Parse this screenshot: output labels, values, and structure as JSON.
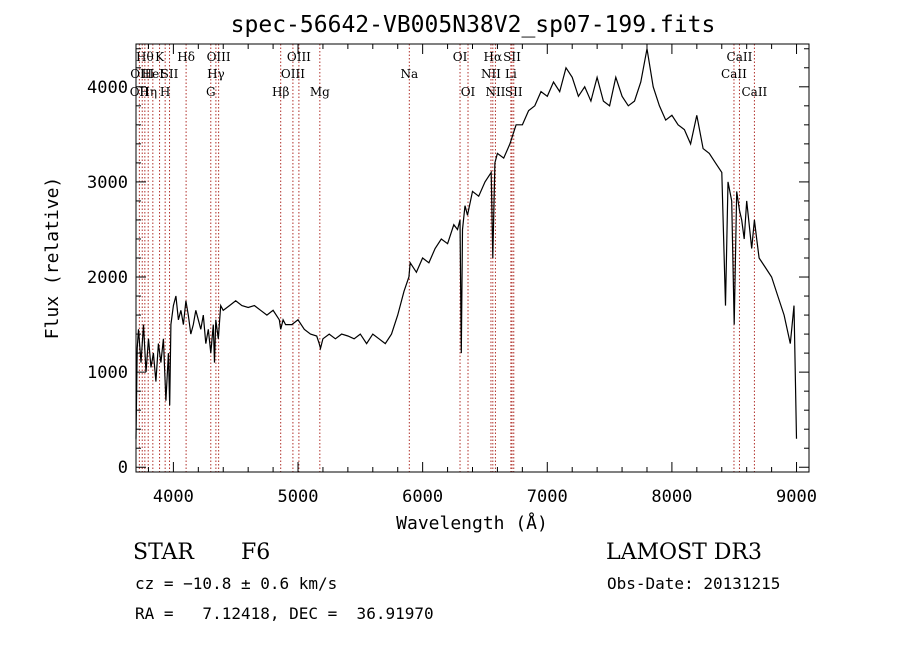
{
  "chart_data": {
    "type": "line",
    "title": "spec-56642-VB005N38V2_sp07-199.fits",
    "xlabel": "Wavelength (Å)",
    "ylabel": "Flux (relative)",
    "xlim": [
      3700,
      9100
    ],
    "ylim": [
      -50,
      4450
    ],
    "xticks": [
      4000,
      5000,
      6000,
      7000,
      8000,
      9000
    ],
    "yticks": [
      0,
      1000,
      2000,
      3000,
      4000
    ],
    "grid": false,
    "series": [
      {
        "x": [
          3700,
          3710,
          3720,
          3740,
          3760,
          3780,
          3800,
          3820,
          3840,
          3860,
          3880,
          3900,
          3920,
          3940,
          3960,
          3970,
          3980,
          4000,
          4020,
          4040,
          4060,
          4080,
          4100,
          4120,
          4140,
          4160,
          4180,
          4200,
          4220,
          4240,
          4260,
          4280,
          4300,
          4320,
          4330,
          4340,
          4360,
          4380,
          4400,
          4450,
          4500,
          4550,
          4600,
          4650,
          4700,
          4750,
          4800,
          4850,
          4861,
          4880,
          4900,
          4950,
          5000,
          5050,
          5100,
          5150,
          5170,
          5180,
          5200,
          5250,
          5300,
          5350,
          5400,
          5450,
          5500,
          5550,
          5600,
          5650,
          5700,
          5750,
          5800,
          5850,
          5890,
          5900,
          5950,
          6000,
          6050,
          6100,
          6150,
          6200,
          6250,
          6280,
          6300,
          6310,
          6320,
          6340,
          6360,
          6400,
          6450,
          6500,
          6550,
          6563,
          6580,
          6600,
          6650,
          6700,
          6750,
          6800,
          6850,
          6900,
          6950,
          7000,
          7050,
          7100,
          7150,
          7200,
          7250,
          7300,
          7350,
          7400,
          7450,
          7500,
          7550,
          7600,
          7650,
          7700,
          7750,
          7800,
          7850,
          7900,
          7950,
          8000,
          8050,
          8100,
          8150,
          8200,
          8250,
          8300,
          8350,
          8400,
          8430,
          8450,
          8480,
          8500,
          8520,
          8542,
          8560,
          8580,
          8600,
          8640,
          8662,
          8680,
          8700,
          8750,
          8800,
          8850,
          8900,
          8950,
          8980,
          9000
        ],
        "y": [
          300,
          1250,
          1450,
          1100,
          1500,
          1000,
          1350,
          1050,
          1200,
          900,
          1300,
          1100,
          1350,
          700,
          1200,
          650,
          1500,
          1700,
          1800,
          1550,
          1650,
          1500,
          1750,
          1600,
          1400,
          1500,
          1650,
          1550,
          1450,
          1600,
          1300,
          1450,
          1200,
          1500,
          1100,
          1550,
          1350,
          1700,
          1650,
          1700,
          1750,
          1700,
          1680,
          1700,
          1650,
          1600,
          1650,
          1550,
          1450,
          1550,
          1500,
          1500,
          1550,
          1450,
          1400,
          1380,
          1300,
          1250,
          1350,
          1400,
          1350,
          1400,
          1380,
          1350,
          1400,
          1300,
          1400,
          1350,
          1300,
          1400,
          1600,
          1850,
          2000,
          2150,
          2050,
          2200,
          2150,
          2300,
          2400,
          2350,
          2550,
          2500,
          2600,
          1200,
          2500,
          2750,
          2650,
          2900,
          2850,
          3000,
          3100,
          2200,
          3200,
          3300,
          3250,
          3400,
          3600,
          3600,
          3750,
          3800,
          3950,
          3900,
          4050,
          3950,
          4200,
          4100,
          3900,
          4000,
          3850,
          4100,
          3850,
          3800,
          4100,
          3900,
          3800,
          3850,
          4050,
          4400,
          4000,
          3800,
          3650,
          3700,
          3600,
          3550,
          3400,
          3700,
          3350,
          3300,
          3200,
          3100,
          1700,
          3000,
          2800,
          1500,
          2900,
          2700,
          2600,
          2400,
          2800,
          2300,
          2600,
          2400,
          2200,
          2100,
          2000,
          1800,
          1600,
          1300,
          1700,
          300
        ]
      }
    ],
    "lines": [
      {
        "x": 3727,
        "rows": [
          3
        ],
        "label": "OII"
      },
      {
        "x": 3750,
        "rows": [
          2
        ],
        "label": "OIII"
      },
      {
        "x": 3771,
        "rows": [
          1
        ],
        "label": "Hθ"
      },
      {
        "x": 3798,
        "rows": [
          3
        ],
        "label": "Hη"
      },
      {
        "x": 3835,
        "rows": [
          2
        ],
        "label": "HeI"
      },
      {
        "x": 3889,
        "rows": [
          1
        ],
        "label": "K"
      },
      {
        "x": 3934,
        "rows": [
          3
        ],
        "label": "H"
      },
      {
        "x": 3969,
        "rows": [
          2
        ],
        "label": "SII"
      },
      {
        "x": 4102,
        "rows": [
          1
        ],
        "label": "Hδ"
      },
      {
        "x": 4300,
        "rows": [
          3
        ],
        "label": "G"
      },
      {
        "x": 4341,
        "rows": [
          2
        ],
        "label": "Hγ"
      },
      {
        "x": 4363,
        "rows": [
          1
        ],
        "label": "OIII"
      },
      {
        "x": 4861,
        "rows": [
          3
        ],
        "label": "Hβ"
      },
      {
        "x": 4959,
        "rows": [
          2
        ],
        "label": "OIII"
      },
      {
        "x": 5007,
        "rows": [
          1
        ],
        "label": "OIII"
      },
      {
        "x": 5175,
        "rows": [
          3
        ],
        "label": "Mg"
      },
      {
        "x": 5893,
        "rows": [
          2
        ],
        "label": "Na"
      },
      {
        "x": 6300,
        "rows": [
          1
        ],
        "label": "OI"
      },
      {
        "x": 6364,
        "rows": [
          3
        ],
        "label": "OI"
      },
      {
        "x": 6548,
        "rows": [
          2
        ],
        "label": "NII"
      },
      {
        "x": 6563,
        "rows": [
          1
        ],
        "label": "Hα"
      },
      {
        "x": 6584,
        "rows": [
          3
        ],
        "label": "NII"
      },
      {
        "x": 6708,
        "rows": [
          2
        ],
        "label": "Li"
      },
      {
        "x": 6717,
        "rows": [
          1
        ],
        "label": "SII"
      },
      {
        "x": 6731,
        "rows": [
          3
        ],
        "label": "SII"
      },
      {
        "x": 8498,
        "rows": [
          2
        ],
        "label": "CaII"
      },
      {
        "x": 8542,
        "rows": [
          1
        ],
        "label": "CaII"
      },
      {
        "x": 8662,
        "rows": [
          3
        ],
        "label": "CaII"
      }
    ]
  },
  "info": {
    "object_class": "STAR",
    "subclass": "F6",
    "survey": "LAMOST DR3",
    "cz": "cz = −10.8 ± 0.6 km/s",
    "obs_date": "Obs-Date: 20131215",
    "coords": "RA =   7.12418, DEC =  36.91970"
  }
}
